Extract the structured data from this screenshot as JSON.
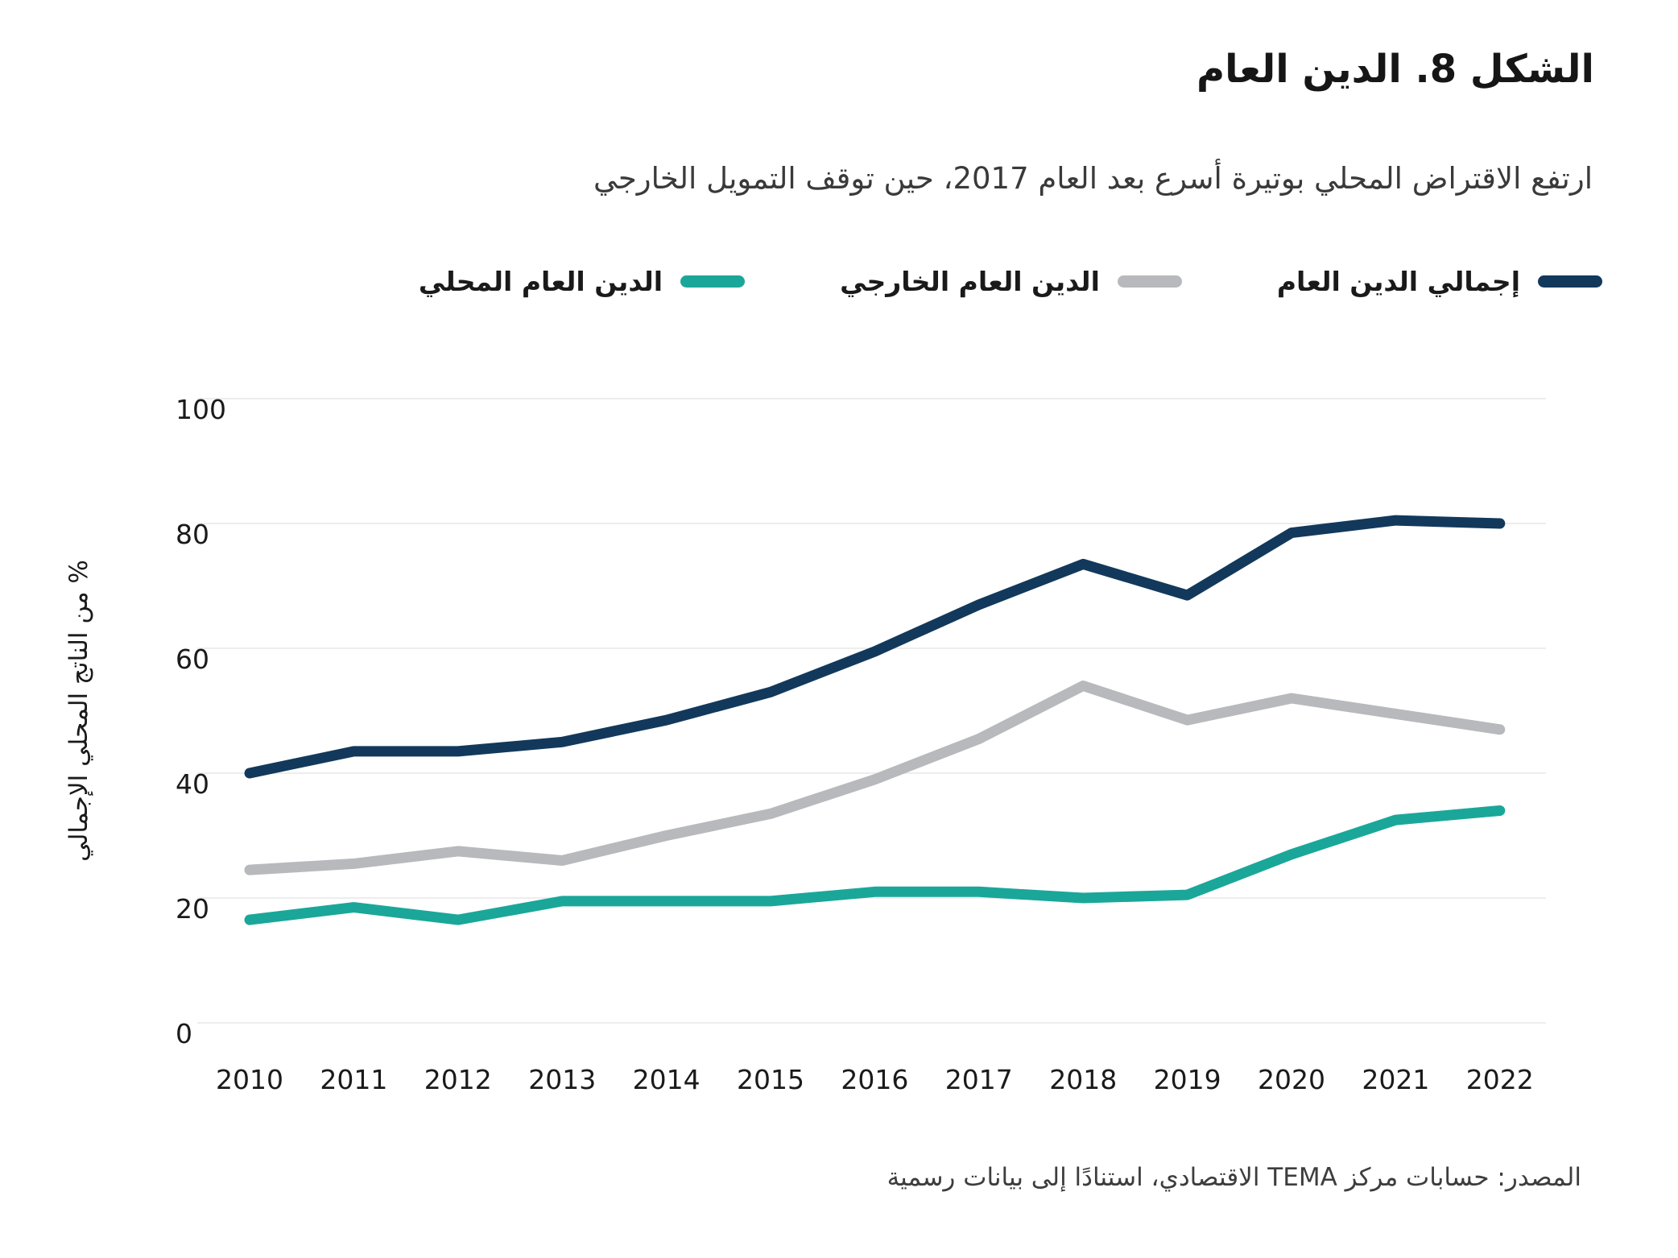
{
  "title": "الشكل 8. الدين العام",
  "subtitle": "ارتفع الاقتراض المحلي بوتيرة أسرع بعد العام 2017، حين توقف التمويل الخارجي",
  "legend": [
    {
      "label": "إجمالي الدين العام",
      "color": "#12395B"
    },
    {
      "label": "الدين العام الخارجي",
      "color": "#B8B9BD"
    },
    {
      "label": "الدين العام المحلي",
      "color": "#1AA79A"
    }
  ],
  "source": "المصدر: حسابات مركز TEMA الاقتصادي، استنادًا إلى بيانات رسمية",
  "colors": {
    "grid": "#EDEDED",
    "tick_text": "#1a1a1a",
    "axis_title_text": "#1a1a1a"
  },
  "chart_data": {
    "type": "line",
    "categories": [
      "2010",
      "2011",
      "2012",
      "2013",
      "2014",
      "2015",
      "2016",
      "2017",
      "2018",
      "2019",
      "2020",
      "2021",
      "2022"
    ],
    "series": [
      {
        "name": "إجمالي الدين العام",
        "color": "#12395B",
        "values": [
          40,
          43.5,
          43.5,
          45,
          48.5,
          53,
          59.5,
          67,
          73.5,
          68.5,
          78.5,
          80.5,
          80
        ]
      },
      {
        "name": "الدين العام الخارجي",
        "color": "#B8B9BD",
        "values": [
          24.5,
          25.5,
          27.5,
          26,
          30,
          33.5,
          39,
          45.5,
          54,
          48.5,
          52,
          49.5,
          47
        ]
      },
      {
        "name": "الدين العام المحلي",
        "color": "#1AA79A",
        "values": [
          16.5,
          18.5,
          16.5,
          19.5,
          19.5,
          19.5,
          21,
          21,
          20,
          20.5,
          27,
          32.5,
          34
        ]
      }
    ],
    "title": "الشكل 8. الدين العام",
    "xlabel": "",
    "ylabel": "% من الناتج المحلي الإجمالي",
    "ylim": [
      0,
      100
    ],
    "yticks": [
      0,
      20,
      40,
      60,
      80,
      100
    ],
    "grid": true,
    "legend_position": "top"
  }
}
